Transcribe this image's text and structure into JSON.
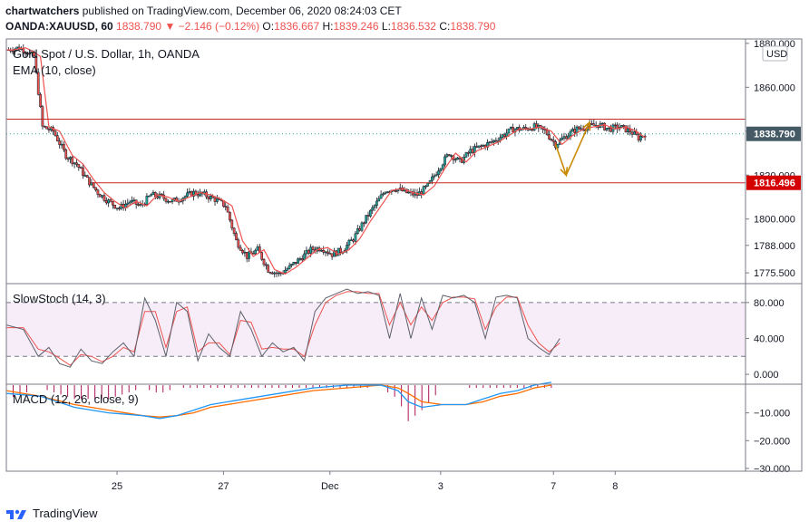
{
  "header": {
    "author": "chartwatchers",
    "published_text": "published on TradingView.com, December 06, 2020 08:24:03 CET",
    "symbol": "OANDA:XAUUSD, 60",
    "last": "1838.790",
    "change": "−2.146 (−0.12%)",
    "o_label": "O:",
    "o_value": "1836.667",
    "h_label": "H:",
    "h_value": "1839.246",
    "l_label": "L:",
    "l_value": "1836.532",
    "c_label": "C:",
    "c_value": "1838.790"
  },
  "footer": {
    "brand": "TradingView"
  },
  "chart_data": [
    {
      "type": "candlestick",
      "title": "Gold Spot / U.S. Dollar, 1h, OANDA",
      "overlay_label": "EMA (10, close)",
      "currency_badge": "USD",
      "y_ticks": [
        "1880.000",
        "1860.000",
        "1840.000",
        "1820.000",
        "1800.000",
        "1788.000",
        "1775.500"
      ],
      "ylim": [
        1771,
        1882
      ],
      "last_price_label": "1838.790",
      "level_label": "1816.496",
      "resistance_level": 1845.5,
      "support_level": 1816.5,
      "last_price": 1838.79,
      "close_path": [
        [
          0,
          1877
        ],
        [
          6,
          1878
        ],
        [
          10,
          1876
        ],
        [
          13,
          1874
        ],
        [
          17,
          1842
        ],
        [
          22,
          1840
        ],
        [
          28,
          1829
        ],
        [
          33,
          1825
        ],
        [
          38,
          1818
        ],
        [
          43,
          1812
        ],
        [
          48,
          1808
        ],
        [
          53,
          1805
        ],
        [
          58,
          1808
        ],
        [
          63,
          1806
        ],
        [
          68,
          1811
        ],
        [
          73,
          1810
        ],
        [
          78,
          1808
        ],
        [
          83,
          1810
        ],
        [
          88,
          1812
        ],
        [
          93,
          1811
        ],
        [
          98,
          1809
        ],
        [
          103,
          1806
        ],
        [
          108,
          1790
        ],
        [
          113,
          1783
        ],
        [
          118,
          1786
        ],
        [
          123,
          1777
        ],
        [
          128,
          1775
        ],
        [
          133,
          1778
        ],
        [
          138,
          1782
        ],
        [
          143,
          1786
        ],
        [
          148,
          1787
        ],
        [
          153,
          1784
        ],
        [
          158,
          1786
        ],
        [
          163,
          1791
        ],
        [
          168,
          1799
        ],
        [
          173,
          1806
        ],
        [
          178,
          1813
        ],
        [
          183,
          1814
        ],
        [
          188,
          1812
        ],
        [
          193,
          1811
        ],
        [
          198,
          1815
        ],
        [
          203,
          1823
        ],
        [
          208,
          1830
        ],
        [
          213,
          1826
        ],
        [
          218,
          1831
        ],
        [
          223,
          1833
        ],
        [
          228,
          1835
        ],
        [
          233,
          1838
        ],
        [
          238,
          1841
        ],
        [
          243,
          1841
        ],
        [
          248,
          1842
        ],
        [
          253,
          1840
        ],
        [
          258,
          1834
        ],
        [
          263,
          1838
        ],
        [
          268,
          1841
        ],
        [
          273,
          1842
        ],
        [
          278,
          1843
        ],
        [
          283,
          1841
        ],
        [
          288,
          1842
        ],
        [
          293,
          1840
        ],
        [
          297,
          1837
        ],
        [
          300,
          1838.79
        ]
      ],
      "n_bars": 300,
      "x_ticks": [
        {
          "label": "25",
          "bar": 52
        },
        {
          "label": "27",
          "bar": 102
        },
        {
          "label": "Dec",
          "bar": 152
        },
        {
          "label": "3",
          "bar": 204
        },
        {
          "label": "7",
          "bar": 257
        },
        {
          "label": "8",
          "bar": 286
        }
      ],
      "projection": [
        [
          258,
          1834
        ],
        [
          263,
          1820
        ],
        [
          274,
          1844
        ]
      ]
    },
    {
      "type": "line",
      "title": "SlowStoch (14, 3)",
      "y_ticks": [
        "80.000",
        "40.000",
        "0.000"
      ],
      "ylim": [
        -10,
        100
      ],
      "bands": [
        80,
        20
      ],
      "k_path": [
        [
          0,
          55
        ],
        [
          8,
          50
        ],
        [
          15,
          20
        ],
        [
          20,
          30
        ],
        [
          25,
          12
        ],
        [
          30,
          8
        ],
        [
          35,
          28
        ],
        [
          40,
          15
        ],
        [
          45,
          12
        ],
        [
          50,
          25
        ],
        [
          55,
          35
        ],
        [
          60,
          20
        ],
        [
          65,
          85
        ],
        [
          70,
          60
        ],
        [
          75,
          20
        ],
        [
          80,
          80
        ],
        [
          85,
          70
        ],
        [
          90,
          15
        ],
        [
          95,
          45
        ],
        [
          100,
          30
        ],
        [
          105,
          20
        ],
        [
          110,
          70
        ],
        [
          115,
          50
        ],
        [
          120,
          20
        ],
        [
          125,
          35
        ],
        [
          130,
          25
        ],
        [
          135,
          30
        ],
        [
          140,
          15
        ],
        [
          145,
          70
        ],
        [
          150,
          85
        ],
        [
          155,
          90
        ],
        [
          160,
          95
        ],
        [
          165,
          90
        ],
        [
          170,
          92
        ],
        [
          175,
          88
        ],
        [
          180,
          40
        ],
        [
          185,
          90
        ],
        [
          190,
          40
        ],
        [
          195,
          85
        ],
        [
          200,
          50
        ],
        [
          205,
          88
        ],
        [
          210,
          85
        ],
        [
          215,
          88
        ],
        [
          220,
          80
        ],
        [
          225,
          40
        ],
        [
          230,
          86
        ],
        [
          235,
          88
        ],
        [
          240,
          85
        ],
        [
          245,
          40
        ],
        [
          250,
          30
        ],
        [
          255,
          22
        ],
        [
          260,
          40
        ]
      ],
      "d_path": [
        [
          0,
          52
        ],
        [
          8,
          52
        ],
        [
          15,
          28
        ],
        [
          20,
          25
        ],
        [
          25,
          18
        ],
        [
          30,
          10
        ],
        [
          35,
          22
        ],
        [
          40,
          20
        ],
        [
          45,
          14
        ],
        [
          50,
          20
        ],
        [
          55,
          30
        ],
        [
          60,
          25
        ],
        [
          65,
          70
        ],
        [
          70,
          70
        ],
        [
          75,
          30
        ],
        [
          80,
          70
        ],
        [
          85,
          75
        ],
        [
          90,
          25
        ],
        [
          95,
          35
        ],
        [
          100,
          35
        ],
        [
          105,
          22
        ],
        [
          110,
          60
        ],
        [
          115,
          58
        ],
        [
          120,
          28
        ],
        [
          125,
          30
        ],
        [
          130,
          28
        ],
        [
          135,
          28
        ],
        [
          140,
          20
        ],
        [
          145,
          55
        ],
        [
          150,
          80
        ],
        [
          155,
          88
        ],
        [
          160,
          92
        ],
        [
          165,
          92
        ],
        [
          170,
          90
        ],
        [
          175,
          90
        ],
        [
          180,
          55
        ],
        [
          185,
          80
        ],
        [
          190,
          55
        ],
        [
          195,
          75
        ],
        [
          200,
          60
        ],
        [
          205,
          80
        ],
        [
          210,
          86
        ],
        [
          215,
          86
        ],
        [
          220,
          84
        ],
        [
          225,
          50
        ],
        [
          230,
          75
        ],
        [
          235,
          86
        ],
        [
          240,
          86
        ],
        [
          245,
          55
        ],
        [
          250,
          35
        ],
        [
          255,
          25
        ],
        [
          260,
          35
        ]
      ]
    },
    {
      "type": "line",
      "title": "MACD (12, 26, close, 9)",
      "y_ticks": [
        "−10.000",
        "−20.000",
        "−30.000"
      ],
      "ylim": [
        -31,
        0
      ],
      "macd_path": [
        [
          0,
          -3
        ],
        [
          10,
          -4
        ],
        [
          20,
          -8
        ],
        [
          30,
          -10
        ],
        [
          40,
          -11
        ],
        [
          45,
          -12
        ],
        [
          50,
          -11
        ],
        [
          55,
          -9
        ],
        [
          60,
          -7
        ],
        [
          70,
          -5
        ],
        [
          80,
          -3
        ],
        [
          90,
          -1
        ],
        [
          100,
          0
        ],
        [
          110,
          0
        ],
        [
          115,
          -2
        ],
        [
          118,
          -6
        ],
        [
          122,
          -8
        ],
        [
          128,
          -7
        ],
        [
          135,
          -7
        ],
        [
          140,
          -5
        ],
        [
          145,
          -3
        ],
        [
          150,
          -2
        ],
        [
          155,
          0
        ],
        [
          160,
          1
        ]
      ],
      "signal_path": [
        [
          0,
          -2
        ],
        [
          10,
          -4
        ],
        [
          20,
          -7
        ],
        [
          30,
          -9
        ],
        [
          40,
          -11
        ],
        [
          45,
          -11.5
        ],
        [
          50,
          -11
        ],
        [
          55,
          -10
        ],
        [
          60,
          -8
        ],
        [
          70,
          -6
        ],
        [
          80,
          -4
        ],
        [
          90,
          -2
        ],
        [
          100,
          -1
        ],
        [
          110,
          0
        ],
        [
          115,
          -1
        ],
        [
          118,
          -3
        ],
        [
          122,
          -6
        ],
        [
          128,
          -7
        ],
        [
          135,
          -7
        ],
        [
          140,
          -6
        ],
        [
          145,
          -4
        ],
        [
          150,
          -3
        ],
        [
          155,
          -1
        ],
        [
          160,
          0
        ]
      ]
    }
  ],
  "colors": {
    "up": "#26a69a",
    "down": "#ef5350",
    "ema": "#ef5350",
    "level_line": "#c62828",
    "level_badge_bg": "#d50000",
    "last_badge_bg": "#455a64",
    "projection": "#c88a00",
    "stoch_k": "#5d606b",
    "stoch_d": "#ef5350",
    "stoch_band_fill": "#f3e5f5",
    "macd": "#2196f3",
    "signal": "#ff6d00",
    "hist": "#ad1457",
    "grid": "#e0e3eb",
    "axis_text": "#131722"
  }
}
